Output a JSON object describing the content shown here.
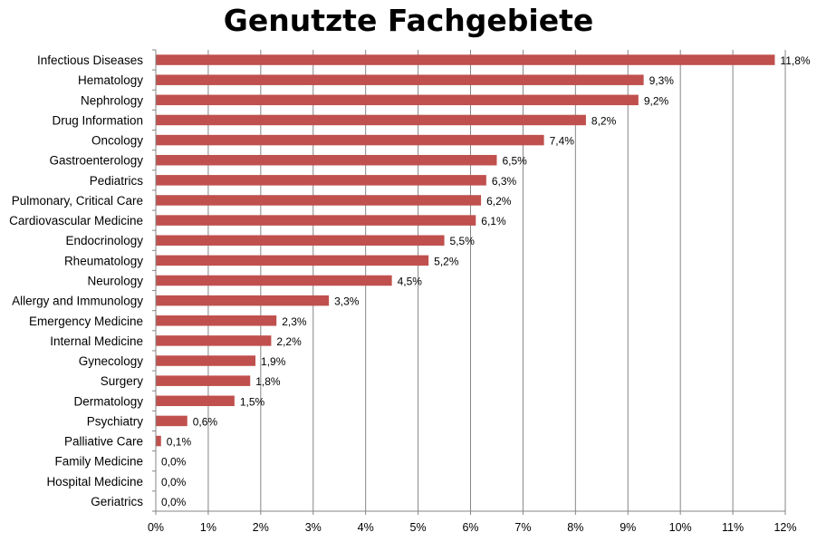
{
  "chart_data": {
    "type": "bar",
    "orientation": "horizontal",
    "title": "Genutzte Fachgebiete",
    "categories": [
      "Infectious Diseases",
      "Hematology",
      "Nephrology",
      "Drug Information",
      "Oncology",
      "Gastroenterology",
      "Pediatrics",
      "Pulmonary, Critical Care",
      "Cardiovascular Medicine",
      "Endocrinology",
      "Rheumatology",
      "Neurology",
      "Allergy and Immunology",
      "Emergency Medicine",
      "Internal Medicine",
      "Gynecology",
      "Surgery",
      "Dermatology",
      "Psychiatry",
      "Palliative Care",
      "Family Medicine",
      "Hospital Medicine",
      "Geriatrics"
    ],
    "values": [
      11.8,
      9.3,
      9.2,
      8.2,
      7.4,
      6.5,
      6.3,
      6.2,
      6.1,
      5.5,
      5.2,
      4.5,
      3.3,
      2.3,
      2.2,
      1.9,
      1.8,
      1.5,
      0.6,
      0.1,
      0.0,
      0.0,
      0.0
    ],
    "value_labels": [
      "11,8%",
      "9,3%",
      "9,2%",
      "8,2%",
      "7,4%",
      "6,5%",
      "6,3%",
      "6,2%",
      "6,1%",
      "5,5%",
      "5,2%",
      "4,5%",
      "3,3%",
      "2,3%",
      "2,2%",
      "1,9%",
      "1,8%",
      "1,5%",
      "0,6%",
      "0,1%",
      "0,0%",
      "0,0%",
      "0,0%"
    ],
    "xlim": [
      0,
      12
    ],
    "x_ticks": [
      0,
      1,
      2,
      3,
      4,
      5,
      6,
      7,
      8,
      9,
      10,
      11,
      12
    ],
    "x_tick_labels": [
      "0%",
      "1%",
      "2%",
      "3%",
      "4%",
      "5%",
      "6%",
      "7%",
      "8%",
      "9%",
      "10%",
      "11%",
      "12%"
    ],
    "grid": true,
    "bar_color": "#C0504D",
    "grid_color": "#868686"
  }
}
